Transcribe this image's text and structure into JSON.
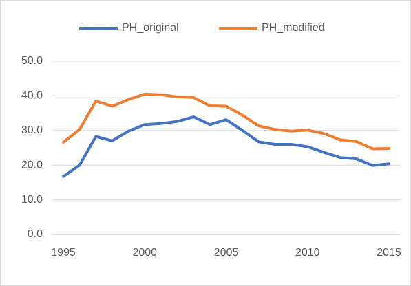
{
  "chart_data": {
    "type": "line",
    "x": [
      1995,
      1996,
      1997,
      1998,
      1999,
      2000,
      2001,
      2002,
      2003,
      2004,
      2005,
      2006,
      2007,
      2008,
      2009,
      2010,
      2011,
      2012,
      2013,
      2014,
      2015
    ],
    "series": [
      {
        "name": "PH_original",
        "color": "#4472c4",
        "values": [
          16.7,
          20,
          28.3,
          27,
          29.8,
          31.7,
          32,
          32.6,
          33.9,
          31.7,
          33.1,
          30,
          26.7,
          26,
          26,
          25.3,
          23.7,
          22.2,
          21.8,
          19.9,
          20.4
        ]
      },
      {
        "name": "PH_modified",
        "color": "#ed7d31",
        "values": [
          26.6,
          30.3,
          38.5,
          37,
          38.9,
          40.5,
          40.3,
          39.7,
          39.5,
          37.1,
          37,
          34.4,
          31.3,
          30.3,
          29.8,
          30.1,
          29.1,
          27.3,
          26.8,
          24.7,
          24.8
        ]
      }
    ],
    "xlim": [
      1995,
      2015
    ],
    "xticks": [
      1995,
      2000,
      2005,
      2010,
      2015
    ],
    "ylim": [
      0,
      50
    ],
    "yticks": [
      {
        "value": 0,
        "label": "0.0"
      },
      {
        "value": 10,
        "label": "10.0"
      },
      {
        "value": 20,
        "label": "20.0"
      },
      {
        "value": 30,
        "label": "30.0"
      },
      {
        "value": 40,
        "label": "40.0"
      },
      {
        "value": 50,
        "label": "50.0"
      }
    ],
    "grid": true,
    "legend": "top"
  }
}
